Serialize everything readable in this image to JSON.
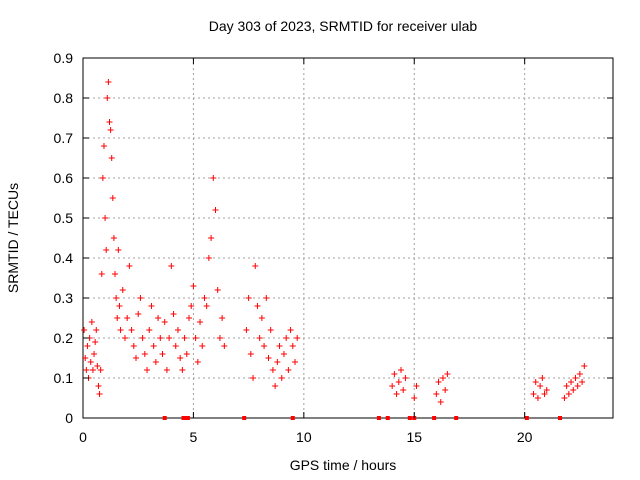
{
  "chart_data": {
    "type": "scatter",
    "title": "Day 303 of 2023, SRMTID for receiver ulab",
    "xlabel": "GPS time / hours",
    "ylabel": "SRMTID / TECUs",
    "xlim": [
      0,
      24
    ],
    "ylim": [
      0,
      0.9
    ],
    "xticks": [
      0,
      5,
      10,
      15,
      20
    ],
    "xtick_labels": [
      "0",
      "5",
      "10",
      "15",
      "20"
    ],
    "yticks": [
      0,
      0.1,
      0.2,
      0.3,
      0.4,
      0.5,
      0.6,
      0.7,
      0.8,
      0.9
    ],
    "ytick_labels": [
      "0",
      "0.1",
      "0.2",
      "0.3",
      "0.4",
      "0.5",
      "0.6",
      "0.7",
      "0.8",
      "0.9"
    ],
    "grid": true,
    "marker": "+",
    "series": [
      {
        "name": "SRMTID",
        "color": "#ff0000",
        "points": [
          [
            0.05,
            0.22
          ],
          [
            0.1,
            0.15
          ],
          [
            0.15,
            0.12
          ],
          [
            0.2,
            0.18
          ],
          [
            0.25,
            0.1
          ],
          [
            0.3,
            0.2
          ],
          [
            0.35,
            0.14
          ],
          [
            0.4,
            0.24
          ],
          [
            0.45,
            0.12
          ],
          [
            0.5,
            0.16
          ],
          [
            0.55,
            0.19
          ],
          [
            0.6,
            0.22
          ],
          [
            0.65,
            0.13
          ],
          [
            0.7,
            0.08
          ],
          [
            0.75,
            0.06
          ],
          [
            0.8,
            0.12
          ],
          [
            0.85,
            0.36
          ],
          [
            0.9,
            0.6
          ],
          [
            0.95,
            0.68
          ],
          [
            1.0,
            0.5
          ],
          [
            1.05,
            0.42
          ],
          [
            1.1,
            0.8
          ],
          [
            1.15,
            0.84
          ],
          [
            1.2,
            0.74
          ],
          [
            1.25,
            0.72
          ],
          [
            1.3,
            0.65
          ],
          [
            1.35,
            0.55
          ],
          [
            1.4,
            0.45
          ],
          [
            1.45,
            0.36
          ],
          [
            1.5,
            0.3
          ],
          [
            1.55,
            0.25
          ],
          [
            1.6,
            0.42
          ],
          [
            1.65,
            0.28
          ],
          [
            1.7,
            0.22
          ],
          [
            1.8,
            0.32
          ],
          [
            1.9,
            0.2
          ],
          [
            2.0,
            0.25
          ],
          [
            2.1,
            0.38
          ],
          [
            2.2,
            0.22
          ],
          [
            2.3,
            0.18
          ],
          [
            2.4,
            0.15
          ],
          [
            2.5,
            0.26
          ],
          [
            2.6,
            0.3
          ],
          [
            2.7,
            0.2
          ],
          [
            2.8,
            0.16
          ],
          [
            2.9,
            0.12
          ],
          [
            3.0,
            0.22
          ],
          [
            3.1,
            0.28
          ],
          [
            3.2,
            0.18
          ],
          [
            3.3,
            0.14
          ],
          [
            3.4,
            0.25
          ],
          [
            3.5,
            0.2
          ],
          [
            3.6,
            0.16
          ],
          [
            3.7,
            0.24
          ],
          [
            3.8,
            0.12
          ],
          [
            3.9,
            0.2
          ],
          [
            4.0,
            0.38
          ],
          [
            4.1,
            0.26
          ],
          [
            4.2,
            0.18
          ],
          [
            4.3,
            0.22
          ],
          [
            4.4,
            0.15
          ],
          [
            4.5,
            0.12
          ],
          [
            4.6,
            0.2
          ],
          [
            4.7,
            0.16
          ],
          [
            4.8,
            0.25
          ],
          [
            4.9,
            0.28
          ],
          [
            5.0,
            0.33
          ],
          [
            5.1,
            0.2
          ],
          [
            5.2,
            0.14
          ],
          [
            5.3,
            0.24
          ],
          [
            5.4,
            0.18
          ],
          [
            5.5,
            0.3
          ],
          [
            5.6,
            0.28
          ],
          [
            5.7,
            0.4
          ],
          [
            5.8,
            0.45
          ],
          [
            5.9,
            0.6
          ],
          [
            6.0,
            0.52
          ],
          [
            6.1,
            0.32
          ],
          [
            6.2,
            0.2
          ],
          [
            6.3,
            0.25
          ],
          [
            6.4,
            0.18
          ],
          [
            7.4,
            0.22
          ],
          [
            7.5,
            0.3
          ],
          [
            7.6,
            0.16
          ],
          [
            7.7,
            0.1
          ],
          [
            7.8,
            0.38
          ],
          [
            7.9,
            0.28
          ],
          [
            8.0,
            0.2
          ],
          [
            8.1,
            0.25
          ],
          [
            8.2,
            0.18
          ],
          [
            8.3,
            0.3
          ],
          [
            8.4,
            0.15
          ],
          [
            8.5,
            0.22
          ],
          [
            8.6,
            0.12
          ],
          [
            8.7,
            0.08
          ],
          [
            8.8,
            0.14
          ],
          [
            8.9,
            0.18
          ],
          [
            9.0,
            0.1
          ],
          [
            9.1,
            0.16
          ],
          [
            9.2,
            0.2
          ],
          [
            9.3,
            0.12
          ],
          [
            9.4,
            0.22
          ],
          [
            9.5,
            0.18
          ],
          [
            9.6,
            0.14
          ],
          [
            9.7,
            0.2
          ],
          [
            14.0,
            0.08
          ],
          [
            14.1,
            0.11
          ],
          [
            14.2,
            0.06
          ],
          [
            14.3,
            0.09
          ],
          [
            14.4,
            0.12
          ],
          [
            14.5,
            0.07
          ],
          [
            14.6,
            0.1
          ],
          [
            15.0,
            0.05
          ],
          [
            15.1,
            0.08
          ],
          [
            16.0,
            0.06
          ],
          [
            16.1,
            0.09
          ],
          [
            16.2,
            0.04
          ],
          [
            16.3,
            0.1
          ],
          [
            16.4,
            0.07
          ],
          [
            16.5,
            0.11
          ],
          [
            20.4,
            0.06
          ],
          [
            20.5,
            0.09
          ],
          [
            20.6,
            0.05
          ],
          [
            20.7,
            0.08
          ],
          [
            20.8,
            0.1
          ],
          [
            20.9,
            0.06
          ],
          [
            21.0,
            0.07
          ],
          [
            21.8,
            0.05
          ],
          [
            21.9,
            0.08
          ],
          [
            22.0,
            0.06
          ],
          [
            22.1,
            0.09
          ],
          [
            22.2,
            0.07
          ],
          [
            22.3,
            0.1
          ],
          [
            22.4,
            0.08
          ],
          [
            22.5,
            0.11
          ],
          [
            22.6,
            0.09
          ],
          [
            22.7,
            0.13
          ]
        ]
      }
    ],
    "baseline_points": [
      [
        3.7,
        0
      ],
      [
        4.55,
        0
      ],
      [
        4.65,
        0
      ],
      [
        4.75,
        0
      ],
      [
        7.3,
        0
      ],
      [
        9.5,
        0
      ],
      [
        13.4,
        0
      ],
      [
        13.8,
        0
      ],
      [
        14.8,
        0
      ],
      [
        15.0,
        0
      ],
      [
        15.9,
        0
      ],
      [
        16.9,
        0
      ],
      [
        20.1,
        0
      ],
      [
        21.6,
        0
      ]
    ]
  }
}
